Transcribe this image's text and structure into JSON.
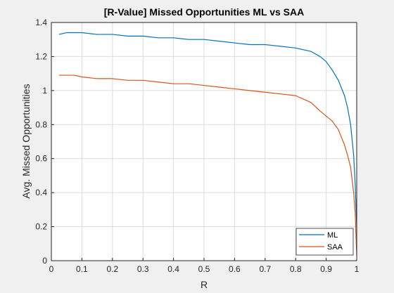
{
  "chart_data": {
    "type": "line",
    "title": "[R-Value] Missed Opportunities ML vs SAA",
    "xlabel": "R",
    "ylabel": "Avg. Missed Opportunities",
    "xlim": [
      0,
      1
    ],
    "ylim": [
      0,
      1.4
    ],
    "xticks": [
      "0",
      "0.1",
      "0.2",
      "0.3",
      "0.4",
      "0.5",
      "0.6",
      "0.7",
      "0.8",
      "0.9",
      "1"
    ],
    "yticks": [
      "0",
      "0.2",
      "0.4",
      "0.6",
      "0.8",
      "1",
      "1.2",
      "1.4"
    ],
    "grid": true,
    "legend_position": "bottom-right",
    "series": [
      {
        "name": "ML",
        "color": "#0072BD",
        "x": [
          0.025,
          0.05,
          0.075,
          0.1,
          0.15,
          0.2,
          0.25,
          0.3,
          0.35,
          0.4,
          0.45,
          0.5,
          0.55,
          0.6,
          0.65,
          0.7,
          0.75,
          0.8,
          0.85,
          0.88,
          0.9,
          0.92,
          0.94,
          0.96,
          0.97,
          0.98,
          0.99,
          0.995,
          1.0
        ],
        "y": [
          1.33,
          1.34,
          1.34,
          1.34,
          1.33,
          1.33,
          1.32,
          1.32,
          1.31,
          1.31,
          1.3,
          1.3,
          1.29,
          1.28,
          1.27,
          1.27,
          1.26,
          1.25,
          1.23,
          1.2,
          1.17,
          1.12,
          1.06,
          0.97,
          0.9,
          0.8,
          0.62,
          0.45,
          0.2
        ]
      },
      {
        "name": "SAA",
        "color": "#D95319",
        "x": [
          0.025,
          0.05,
          0.075,
          0.1,
          0.15,
          0.2,
          0.25,
          0.3,
          0.35,
          0.4,
          0.45,
          0.5,
          0.55,
          0.6,
          0.65,
          0.7,
          0.75,
          0.8,
          0.85,
          0.88,
          0.9,
          0.92,
          0.94,
          0.96,
          0.97,
          0.98,
          0.99,
          0.995,
          1.0
        ],
        "y": [
          1.09,
          1.09,
          1.09,
          1.08,
          1.07,
          1.07,
          1.06,
          1.06,
          1.05,
          1.04,
          1.04,
          1.03,
          1.02,
          1.01,
          1.0,
          0.99,
          0.98,
          0.97,
          0.93,
          0.88,
          0.85,
          0.82,
          0.77,
          0.68,
          0.62,
          0.55,
          0.4,
          0.28,
          0.03
        ]
      }
    ]
  }
}
